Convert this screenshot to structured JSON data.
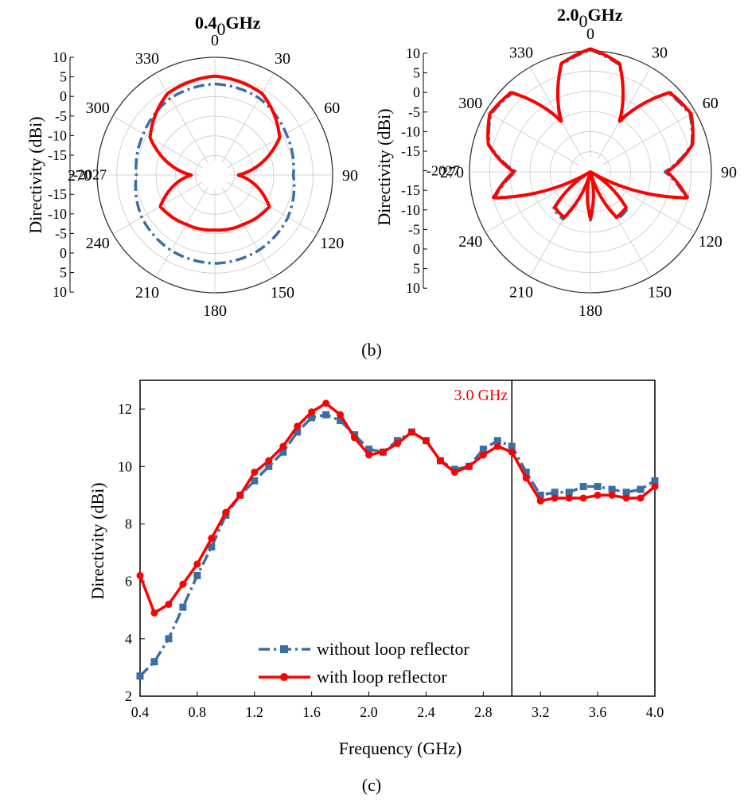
{
  "panel_b_label": "(b)",
  "panel_c_label": "(c)",
  "colors": {
    "without": "#3a6fa6",
    "with": "#ff0000",
    "grid": "#c8c8c8"
  },
  "chart_data": [
    {
      "type": "polar",
      "title": "0.4",
      "title_suffix": "GHz",
      "title_zero": "0",
      "radial_axis_label": "Directivity (dBi)",
      "radial_range": [
        -20,
        10
      ],
      "radial_ticks": [
        "10",
        "5",
        "0",
        "-5",
        "-10",
        "-15",
        "-20",
        "-15",
        "-10",
        "-5",
        "0",
        "5",
        "10"
      ],
      "left_tick_overlap": "-2027",
      "angle_labels": [
        "0",
        "30",
        "60",
        "90",
        "120",
        "150",
        "180",
        "210",
        "240",
        "270",
        "300",
        "330"
      ],
      "series": [
        {
          "name": "without loop reflector",
          "theta": [
            0,
            30,
            60,
            90,
            120,
            150,
            180,
            210,
            240,
            270,
            300,
            330
          ],
          "r": [
            3.2,
            2.6,
            1.0,
            0.0,
            1.5,
            2.2,
            2.5,
            2.2,
            1.5,
            0.0,
            1.0,
            2.6
          ]
        },
        {
          "name": "with loop reflector",
          "theta": [
            0,
            30,
            60,
            90,
            120,
            150,
            180,
            210,
            240,
            270,
            300,
            330
          ],
          "r": [
            5.2,
            4.0,
            -1.0,
            -14.0,
            -4.0,
            -5.5,
            -6.0,
            -5.5,
            -4.0,
            -14.0,
            -1.0,
            4.0
          ]
        }
      ]
    },
    {
      "type": "polar",
      "title": "2.0",
      "title_suffix": "GHz",
      "title_zero": "0",
      "radial_axis_label": "Directivity (dBi)",
      "radial_range": [
        -20,
        10
      ],
      "radial_ticks": [
        "10",
        "5",
        "0",
        "-5",
        "-10",
        "-15",
        "-20",
        "-15",
        "-10",
        "-5",
        "0",
        "5",
        "10"
      ],
      "left_tick_overlap": "-2027",
      "angle_labels": [
        "0",
        "30",
        "60",
        "90",
        "120",
        "150",
        "180",
        "210",
        "240",
        "270",
        "300",
        "330"
      ],
      "series": [
        {
          "name": "without loop reflector",
          "theta": [
            0,
            15,
            30,
            45,
            60,
            75,
            90,
            105,
            120,
            135,
            150,
            165,
            180,
            195,
            210,
            225,
            240,
            255,
            270,
            285,
            300,
            315,
            330,
            345
          ],
          "r": [
            10.2,
            7.5,
            -5.0,
            7.5,
            8.5,
            6.0,
            -1.5,
            4.5,
            -20,
            -7.0,
            -6.5,
            -20,
            -8.0,
            -20,
            -6.5,
            -7.0,
            -20,
            4.5,
            -1.5,
            6.0,
            8.5,
            7.5,
            -5.0,
            7.5
          ]
        },
        {
          "name": "with loop reflector",
          "theta": [
            0,
            15,
            30,
            45,
            60,
            75,
            90,
            105,
            120,
            135,
            150,
            165,
            180,
            195,
            210,
            225,
            240,
            255,
            270,
            285,
            300,
            315,
            330,
            345
          ],
          "r": [
            10.5,
            7.8,
            -5.5,
            7.8,
            8.8,
            6.2,
            -1.0,
            4.8,
            -20,
            -7.5,
            -7.0,
            -20,
            -8.5,
            -20,
            -7.0,
            -7.5,
            -20,
            4.8,
            -1.0,
            6.2,
            8.8,
            7.8,
            -5.5,
            7.8
          ]
        }
      ]
    },
    {
      "type": "line",
      "xlabel": "Frequency (GHz)",
      "ylabel": "Directivity (dBi)",
      "xlim": [
        0.4,
        4.0
      ],
      "ylim": [
        2,
        13
      ],
      "xticks": [
        "0.4",
        "0.8",
        "1.2",
        "1.6",
        "2.0",
        "2.4",
        "2.8",
        "3.2",
        "3.6",
        "4.0"
      ],
      "yticks": [
        "2",
        "4",
        "6",
        "8",
        "10",
        "12"
      ],
      "annotation": {
        "text": "3.0 GHz",
        "x": 3.0
      },
      "legend_position": "bottom-left",
      "x": [
        0.4,
        0.5,
        0.6,
        0.7,
        0.8,
        0.9,
        1.0,
        1.1,
        1.2,
        1.3,
        1.4,
        1.5,
        1.6,
        1.7,
        1.8,
        1.9,
        2.0,
        2.1,
        2.2,
        2.3,
        2.4,
        2.5,
        2.6,
        2.7,
        2.8,
        2.9,
        3.0,
        3.1,
        3.2,
        3.3,
        3.4,
        3.5,
        3.6,
        3.7,
        3.8,
        3.9,
        4.0
      ],
      "series": [
        {
          "name": "without loop reflector",
          "values": [
            2.7,
            3.2,
            4.0,
            5.1,
            6.2,
            7.2,
            8.3,
            9.0,
            9.5,
            10.0,
            10.5,
            11.2,
            11.7,
            11.8,
            11.6,
            11.1,
            10.6,
            10.5,
            10.9,
            11.2,
            10.9,
            10.2,
            9.9,
            10.0,
            10.6,
            10.9,
            10.7,
            9.8,
            9.0,
            9.1,
            9.1,
            9.3,
            9.3,
            9.2,
            9.1,
            9.2,
            9.5
          ]
        },
        {
          "name": "with loop reflector",
          "values": [
            6.2,
            4.9,
            5.2,
            5.9,
            6.6,
            7.5,
            8.4,
            9.0,
            9.8,
            10.2,
            10.7,
            11.4,
            11.9,
            12.2,
            11.8,
            11.0,
            10.4,
            10.5,
            10.8,
            11.2,
            10.9,
            10.2,
            9.8,
            10.0,
            10.4,
            10.7,
            10.5,
            9.6,
            8.8,
            8.9,
            8.9,
            8.9,
            9.0,
            9.0,
            8.9,
            8.9,
            9.3
          ]
        }
      ]
    }
  ]
}
